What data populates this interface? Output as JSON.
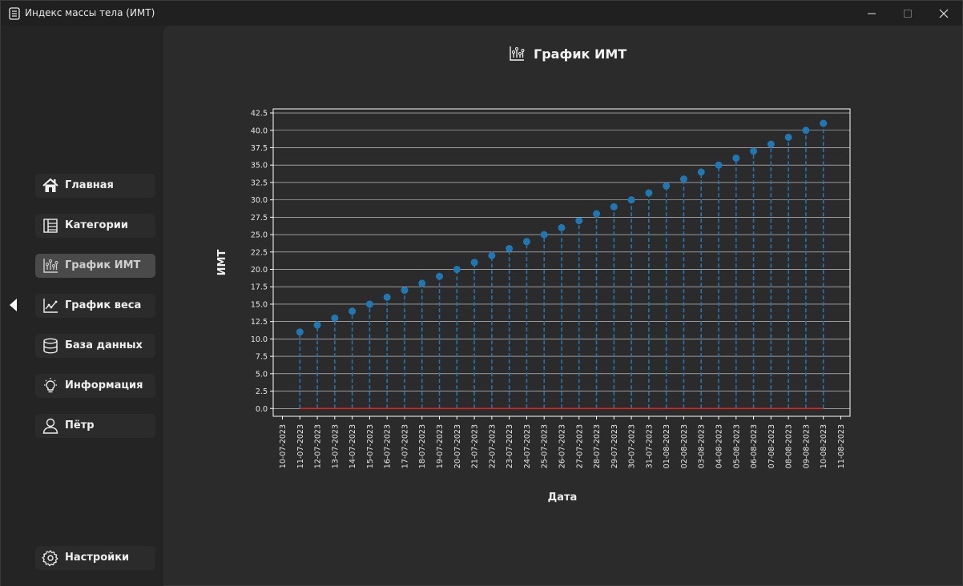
{
  "window": {
    "title": "Индекс массы тела (ИМТ)",
    "icon": "document-icon",
    "controls": [
      "minimize-icon",
      "maximize-icon",
      "close-icon"
    ]
  },
  "sidebar": {
    "items": [
      {
        "label": "Главная",
        "icon": "home-icon",
        "active": false
      },
      {
        "label": "Категории",
        "icon": "categories-icon",
        "active": false
      },
      {
        "label": "График ИМТ",
        "icon": "bar-chart-icon",
        "active": true
      },
      {
        "label": "График веса",
        "icon": "line-chart-icon",
        "active": false
      },
      {
        "label": "База данных",
        "icon": "database-icon",
        "active": false
      },
      {
        "label": "Информация",
        "icon": "lightbulb-icon",
        "active": false
      },
      {
        "label": "Пётр",
        "icon": "user-icon",
        "active": false
      }
    ],
    "settings": {
      "label": "Настройки",
      "icon": "gear-icon"
    },
    "collapse_icon": "triangle-left-icon"
  },
  "page": {
    "title": "График ИМТ",
    "icon": "bar-chart-icon"
  },
  "chart_data": {
    "type": "stem",
    "title": "",
    "xlabel": "Дата",
    "ylabel": "ИМТ",
    "x_ticks": [
      "10-07-2023",
      "11-07-2023",
      "12-07-2023",
      "13-07-2023",
      "14-07-2023",
      "15-07-2023",
      "16-07-2023",
      "17-07-2023",
      "18-07-2023",
      "19-07-2023",
      "20-07-2023",
      "21-07-2023",
      "22-07-2023",
      "23-07-2023",
      "24-07-2023",
      "25-07-2023",
      "26-07-2023",
      "27-07-2023",
      "28-07-2023",
      "29-07-2023",
      "30-07-2023",
      "31-07-2023",
      "01-08-2023",
      "02-08-2023",
      "03-08-2023",
      "04-08-2023",
      "05-08-2023",
      "06-08-2023",
      "07-08-2023",
      "08-08-2023",
      "09-08-2023",
      "10-08-2023",
      "11-08-2023"
    ],
    "x": [
      "11-07-2023",
      "12-07-2023",
      "13-07-2023",
      "14-07-2023",
      "15-07-2023",
      "16-07-2023",
      "17-07-2023",
      "18-07-2023",
      "19-07-2023",
      "20-07-2023",
      "21-07-2023",
      "22-07-2023",
      "23-07-2023",
      "24-07-2023",
      "25-07-2023",
      "26-07-2023",
      "27-07-2023",
      "28-07-2023",
      "29-07-2023",
      "30-07-2023",
      "31-07-2023",
      "01-08-2023",
      "02-08-2023",
      "03-08-2023",
      "04-08-2023",
      "05-08-2023",
      "06-08-2023",
      "07-08-2023",
      "08-08-2023",
      "09-08-2023",
      "10-08-2023"
    ],
    "values": [
      11,
      12,
      13,
      14,
      15,
      16,
      17,
      18,
      19,
      20,
      21,
      22,
      23,
      24,
      25,
      26,
      27,
      28,
      29,
      30,
      31,
      32,
      33,
      34,
      35,
      36,
      37,
      38,
      39,
      40,
      41
    ],
    "y_ticks": [
      "0.0",
      "2.5",
      "5.0",
      "7.5",
      "10.0",
      "12.5",
      "15.0",
      "17.5",
      "20.0",
      "22.5",
      "25.0",
      "27.5",
      "30.0",
      "32.5",
      "35.0",
      "37.5",
      "40.0",
      "42.5"
    ],
    "ylim": [
      -1.12,
      43.08
    ],
    "grid": true,
    "colors": {
      "stem": "#1f77b4",
      "marker": "#1f77b4",
      "baseline": "#d62728",
      "background": "#2b2b2b",
      "frame": "#ffffff",
      "grid": "#ffffff"
    }
  }
}
